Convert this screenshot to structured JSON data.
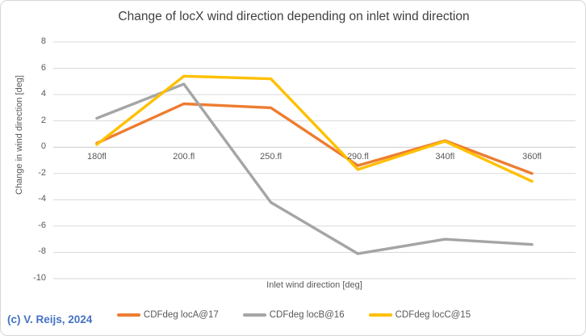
{
  "title_text": "Change of locX wind direction depending on inlet wind direction",
  "copyright": "(c) V. Reijs, 2024",
  "colors": {
    "gridline": "#d9d9d9",
    "zero_line": "#c9c9c9",
    "axis_text": "#595959",
    "title_text_color": "#404040",
    "copyright_blue": "#4472C4"
  },
  "chart_data": {
    "type": "line",
    "title": "Change of locX wind direction depending on inlet wind direction",
    "categories": [
      "180fl",
      "200.fl",
      "250.fl",
      "290.fl",
      "340fl",
      "360fl"
    ],
    "series": [
      {
        "name": "CDFdeg locA@17",
        "color": "#ED7D31",
        "values": [
          0.3,
          3.3,
          3.0,
          -1.4,
          0.5,
          -2.0
        ]
      },
      {
        "name": "CDFdeg locB@16",
        "color": "#A5A5A5",
        "values": [
          2.2,
          4.8,
          -4.2,
          -8.1,
          -7.0,
          -7.4
        ]
      },
      {
        "name": "CDFdeg locC@15",
        "color": "#FFC000",
        "values": [
          0.2,
          5.4,
          5.2,
          -1.7,
          0.45,
          -2.6
        ]
      }
    ],
    "xlabel": "Inlet wind direction [deg]",
    "ylabel": "Change in wind direction [deg]",
    "ylim": [
      -10,
      8
    ],
    "ytick_step": 2,
    "grid": "horizontal-only",
    "legend_position": "bottom",
    "x_tick_label_position": "below-zero-axis",
    "annotations": [
      "(c) V. Reijs, 2024"
    ]
  }
}
